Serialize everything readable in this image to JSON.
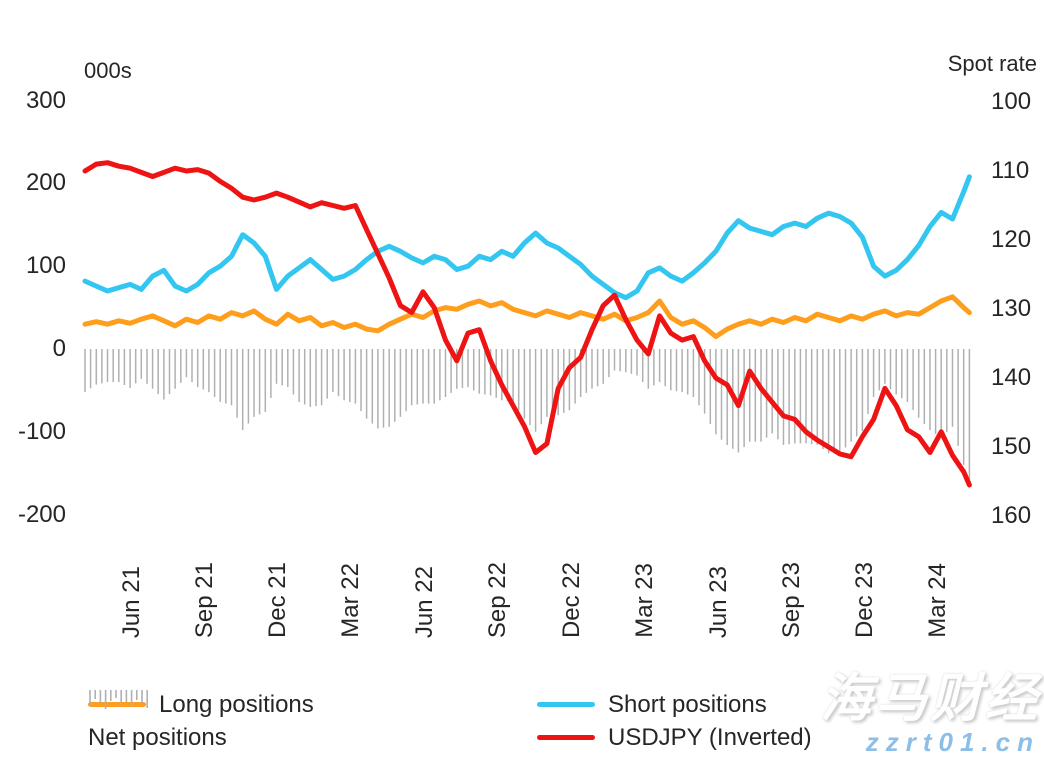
{
  "watermark": {
    "cn_text": "海马财经",
    "url_text": "zzrt01.cn"
  },
  "chart_data": {
    "type": "line+bar",
    "left_axis_title": "000s",
    "right_axis_title": "Spot rate",
    "left_ticks": [
      300,
      200,
      100,
      0,
      -100,
      -200
    ],
    "left_axis_range": [
      -200,
      300
    ],
    "right_ticks": [
      100,
      110,
      120,
      130,
      140,
      150,
      160
    ],
    "right_axis_range": [
      100,
      160
    ],
    "right_axis_inverted": true,
    "grid": false,
    "x_tick_labels": [
      "Jun 21",
      "Sep 21",
      "Dec 21",
      "Mar 22",
      "Jun 22",
      "Sep 22",
      "Dec 22",
      "Mar 23",
      "Jun 23",
      "Sep 23",
      "Dec 23",
      "Mar 24"
    ],
    "x_unit": "weekly observations, Apr 2021 - Apr 2024",
    "weeks_total": 158,
    "anchor_weeks_step": 2,
    "legend_position": "bottom",
    "series": [
      {
        "name": "Long positions",
        "type": "line",
        "axis": "left",
        "color": "#FF9E1C",
        "values": [
          30,
          33,
          30,
          34,
          31,
          36,
          40,
          34,
          28,
          36,
          32,
          40,
          36,
          44,
          40,
          46,
          36,
          30,
          42,
          34,
          38,
          28,
          32,
          26,
          30,
          24,
          22,
          30,
          36,
          42,
          38,
          46,
          50,
          48,
          54,
          58,
          52,
          56,
          48,
          44,
          40,
          46,
          42,
          38,
          44,
          40,
          36,
          42,
          34,
          38,
          44,
          58,
          38,
          30,
          34,
          26,
          15,
          24,
          30,
          34,
          30,
          36,
          32,
          38,
          34,
          42,
          38,
          34,
          40,
          36,
          42,
          46,
          40,
          44,
          42,
          50,
          58,
          63,
          50,
          44
        ]
      },
      {
        "name": "Short positions",
        "type": "line",
        "axis": "left",
        "color": "#33C6F0",
        "values": [
          82,
          76,
          70,
          74,
          78,
          72,
          88,
          95,
          76,
          70,
          78,
          92,
          100,
          112,
          138,
          128,
          112,
          72,
          88,
          98,
          108,
          96,
          84,
          88,
          96,
          108,
          118,
          124,
          118,
          110,
          104,
          112,
          108,
          96,
          100,
          112,
          108,
          118,
          112,
          128,
          140,
          128,
          122,
          112,
          102,
          88,
          78,
          68,
          62,
          70,
          92,
          98,
          88,
          82,
          92,
          104,
          118,
          140,
          155,
          146,
          142,
          138,
          148,
          152,
          148,
          158,
          164,
          160,
          152,
          135,
          100,
          88,
          95,
          108,
          125,
          148,
          165,
          157,
          190,
          208
        ]
      },
      {
        "name": "USDJPY (Inverted)",
        "type": "line",
        "axis": "right",
        "color": "#EE1414",
        "values": [
          110.0,
          109.0,
          108.8,
          109.3,
          109.6,
          110.2,
          110.8,
          110.2,
          109.6,
          110.0,
          109.8,
          110.3,
          111.5,
          112.5,
          113.8,
          114.2,
          113.8,
          113.2,
          113.8,
          114.5,
          115.2,
          114.6,
          115.0,
          115.4,
          115.0,
          118.5,
          122.0,
          125.5,
          129.5,
          130.5,
          127.5,
          129.8,
          134.5,
          137.5,
          133.5,
          133.0,
          137.5,
          141.0,
          144.0,
          147.0,
          150.8,
          149.5,
          141.5,
          138.5,
          137.0,
          133.0,
          129.5,
          128.0,
          131.5,
          134.5,
          136.5,
          131.0,
          133.5,
          134.5,
          134.0,
          137.5,
          140.0,
          141.0,
          144.0,
          139.0,
          141.5,
          143.5,
          145.5,
          146.0,
          147.8,
          149.0,
          150.0,
          151.0,
          151.4,
          148.5,
          146.0,
          141.5,
          144.0,
          147.5,
          148.5,
          150.8,
          147.8,
          151.2,
          153.6,
          155.5
        ]
      },
      {
        "name": "Net positions",
        "type": "bar",
        "axis": "left",
        "color": "#B0B0B0",
        "values": [
          -52,
          -43,
          -40,
          -40,
          -47,
          -36,
          -48,
          -61,
          -48,
          -34,
          -46,
          -52,
          -64,
          -68,
          -98,
          -82,
          -76,
          -42,
          -46,
          -64,
          -70,
          -68,
          -52,
          -62,
          -66,
          -84,
          -96,
          -94,
          -82,
          -68,
          -66,
          -66,
          -58,
          -48,
          -46,
          -54,
          -56,
          -62,
          -64,
          -84,
          -100,
          -82,
          -80,
          -74,
          -58,
          -48,
          -42,
          -26,
          -28,
          -32,
          -48,
          -40,
          -50,
          -52,
          -58,
          -78,
          -103,
          -116,
          -125,
          -112,
          -112,
          -102,
          -116,
          -114,
          -114,
          -116,
          -126,
          -126,
          -112,
          -99,
          -58,
          -42,
          -55,
          -64,
          -83,
          -98,
          -107,
          -94,
          -140,
          -164
        ]
      }
    ]
  }
}
